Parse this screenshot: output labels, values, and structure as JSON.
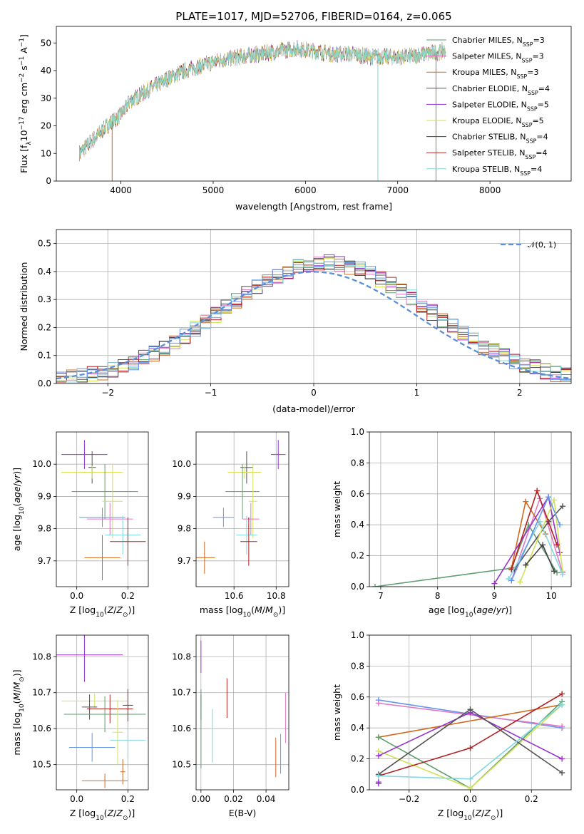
{
  "figure_title": "PLATE=1017, MJD=52706, FIBERID=0164, z=0.065",
  "colors": [
    "#5f9e6e",
    "#e377c2",
    "#d2691e",
    "#555555",
    "#9932cc",
    "#d4e157",
    "#444444",
    "#b22222",
    "#80d8e0",
    "#6495ed"
  ],
  "chart_data": [
    {
      "id": "spectrum",
      "type": "line",
      "xlabel": "wavelength [Angstrom, rest frame]",
      "ylabel": "Flux [f_λ10^-17 erg cm^-2 s^-1 A^-1]",
      "xlim": [
        3300,
        8880
      ],
      "ylim": [
        0,
        56
      ],
      "xticks": [
        4000,
        5000,
        6000,
        7000,
        8000
      ],
      "yticks": [
        0,
        10,
        20,
        30,
        40,
        50
      ],
      "grid": false,
      "legend_position": "top-right",
      "continuum": {
        "x": [
          3550,
          3700,
          3850,
          4000,
          4100,
          4300,
          4500,
          4700,
          4900,
          5100,
          5300,
          5500,
          5700,
          5900,
          6100,
          6300,
          6500,
          6700,
          6900,
          7100,
          7300,
          7500
        ],
        "y": [
          10,
          15,
          20,
          24,
          29,
          33,
          37,
          40,
          42,
          44,
          45,
          46,
          47,
          48,
          47,
          46,
          46,
          45,
          45,
          45,
          46,
          47
        ]
      },
      "dips": [
        {
          "x": 3905,
          "y": 0
        },
        {
          "x": 6785,
          "y": 0
        },
        {
          "x": 7415,
          "y": 0
        }
      ],
      "series": [
        {
          "name": "Chabrier MILES, N",
          "sub": "SSP",
          "suffix": "=3"
        },
        {
          "name": "Salpeter MILES, N",
          "sub": "SSP",
          "suffix": "=3"
        },
        {
          "name": "Kroupa MILES, N",
          "sub": "SSP",
          "suffix": "=3"
        },
        {
          "name": "Chabrier ELODIE, N",
          "sub": "SSP",
          "suffix": "=4"
        },
        {
          "name": "Salpeter ELODIE, N",
          "sub": "SSP",
          "suffix": "=5"
        },
        {
          "name": "Kroupa ELODIE, N",
          "sub": "SSP",
          "suffix": "=5"
        },
        {
          "name": "Chabrier STELIB, N",
          "sub": "SSP",
          "suffix": "=4"
        },
        {
          "name": "Salpeter STELIB, N",
          "sub": "SSP",
          "suffix": "=4"
        },
        {
          "name": "Kroupa STELIB, N",
          "sub": "SSP",
          "suffix": "=4"
        }
      ]
    },
    {
      "id": "residuals",
      "type": "bar",
      "xlabel": "(data-model)/error",
      "ylabel": "Normed distribution",
      "xlim": [
        -2.5,
        2.5
      ],
      "ylim": [
        0,
        0.55
      ],
      "xticks": [
        -2,
        -1,
        0,
        1,
        2
      ],
      "xtick_labels": [
        "−2",
        "−1",
        "0",
        "1",
        "2"
      ],
      "yticks": [
        0.0,
        0.1,
        0.2,
        0.3,
        0.4,
        0.5
      ],
      "ytick_labels": [
        "0.0",
        "0.1",
        "0.2",
        "0.3",
        "0.4",
        "0.5"
      ],
      "grid": true,
      "legend_position": "top-right",
      "legend_label": "𝒩(0, 1)",
      "bin_start": -2.5,
      "bin_width": 0.1
    },
    {
      "id": "z-age",
      "type": "scatter",
      "xlabel": "Z [log10(Z/Z⊙)]",
      "ylabel": "age [log10(age/yr)]",
      "xlim": [
        -0.08,
        0.28
      ],
      "ylim": [
        9.62,
        10.1
      ],
      "xticks": [
        0.0,
        0.2
      ],
      "xtick_labels": [
        "0.0",
        "0.2"
      ],
      "yticks": [
        9.7,
        9.8,
        9.9,
        10.0
      ],
      "ytick_labels": [
        "9.7",
        "9.8",
        "9.9",
        "10.0"
      ],
      "grid": true,
      "points": [
        {
          "x": 0.03,
          "xerr": 0.09,
          "y": 10.03,
          "yerr": 0.045,
          "c": 4
        },
        {
          "x": 0.06,
          "xerr": 0.015,
          "y": 9.99,
          "yerr": 0.05,
          "c": 3
        },
        {
          "x": 0.06,
          "xerr": 0.12,
          "y": 9.975,
          "yerr": 0.02,
          "c": 5
        },
        {
          "x": 0.11,
          "xerr": 0.13,
          "y": 9.915,
          "yerr": 0.085,
          "c": 0
        },
        {
          "x": 0.14,
          "xerr": 0.04,
          "y": 9.885,
          "yerr": 0.115,
          "c": 5
        },
        {
          "x": 0.1,
          "xerr": 0.09,
          "y": 9.835,
          "yerr": 0.03,
          "c": 9
        },
        {
          "x": 0.13,
          "xerr": 0.09,
          "y": 9.83,
          "yerr": 0.05,
          "c": 1
        },
        {
          "x": 0.18,
          "xerr": 0.07,
          "y": 9.78,
          "yerr": 0.06,
          "c": 8
        },
        {
          "x": 0.2,
          "xerr": 0.07,
          "y": 9.76,
          "yerr": 0.075,
          "c": 7
        },
        {
          "x": 0.1,
          "xerr": 0.07,
          "y": 9.71,
          "yerr": 0.07,
          "c": 2
        }
      ]
    },
    {
      "id": "mass-age",
      "type": "scatter",
      "xlabel": "mass [log10(M/M⊙)]",
      "ylabel": "",
      "xlim": [
        10.42,
        10.86
      ],
      "ylim": [
        9.62,
        10.1
      ],
      "xticks": [
        10.6,
        10.8
      ],
      "xtick_labels": [
        "10.6",
        "10.8"
      ],
      "yticks": [
        9.7,
        9.8,
        9.9,
        10.0
      ],
      "ytick_labels": [
        "9.7",
        "9.8",
        "9.9",
        "10.0"
      ],
      "grid": true,
      "points": [
        {
          "x": 10.81,
          "xerr": 0.035,
          "y": 10.03,
          "yerr": 0.045,
          "c": 4
        },
        {
          "x": 10.66,
          "xerr": 0.03,
          "y": 9.99,
          "yerr": 0.05,
          "c": 3
        },
        {
          "x": 10.65,
          "xerr": 0.08,
          "y": 9.975,
          "yerr": 0.02,
          "c": 5
        },
        {
          "x": 10.64,
          "xerr": 0.08,
          "y": 9.915,
          "yerr": 0.085,
          "c": 0
        },
        {
          "x": 10.69,
          "xerr": 0.02,
          "y": 9.885,
          "yerr": 0.115,
          "c": 5
        },
        {
          "x": 10.55,
          "xerr": 0.05,
          "y": 9.835,
          "yerr": 0.03,
          "c": 9
        },
        {
          "x": 10.68,
          "xerr": 0.04,
          "y": 9.83,
          "yerr": 0.05,
          "c": 1
        },
        {
          "x": 10.66,
          "xerr": 0.05,
          "y": 9.78,
          "yerr": 0.06,
          "c": 8
        },
        {
          "x": 10.67,
          "xerr": 0.04,
          "y": 9.76,
          "yerr": 0.075,
          "c": 7
        },
        {
          "x": 10.46,
          "xerr": 0.05,
          "y": 9.71,
          "yerr": 0.05,
          "c": 2
        }
      ]
    },
    {
      "id": "age-weight",
      "type": "line",
      "xlabel": "age [log10(age/yr)]",
      "ylabel": "mass weight",
      "xlim": [
        6.8,
        10.35
      ],
      "ylim": [
        0,
        1.0
      ],
      "xticks": [
        7,
        8,
        9,
        10
      ],
      "xtick_labels": [
        "7",
        "8",
        "9",
        "10"
      ],
      "yticks": [
        0,
        0.2,
        0.4,
        0.6,
        0.8,
        1.0
      ],
      "ytick_labels": [
        "0.0",
        "0.2",
        "0.4",
        "0.6",
        "0.8",
        "1.0"
      ],
      "grid": true,
      "lines": [
        {
          "c": 0,
          "pts": [
            [
              6.9,
              0.0
            ],
            [
              9.3,
              0.12
            ],
            [
              9.6,
              0.4
            ],
            [
              10.1,
              0.09
            ]
          ]
        },
        {
          "c": 1,
          "pts": [
            [
              9.3,
              0.04
            ],
            [
              9.8,
              0.57
            ],
            [
              10.2,
              0.09
            ]
          ]
        },
        {
          "c": 2,
          "pts": [
            [
              9.3,
              0.12
            ],
            [
              9.55,
              0.55
            ],
            [
              9.9,
              0.34
            ]
          ]
        },
        {
          "c": 3,
          "pts": [
            [
              9.35,
              0.11
            ],
            [
              9.95,
              0.42
            ],
            [
              10.2,
              0.52
            ]
          ]
        },
        {
          "c": 4,
          "pts": [
            [
              9.0,
              0.02
            ],
            [
              9.95,
              0.58
            ],
            [
              10.15,
              0.22
            ]
          ]
        },
        {
          "c": 5,
          "pts": [
            [
              9.45,
              0.03
            ],
            [
              10.05,
              0.56
            ],
            [
              10.2,
              0.1
            ]
          ]
        },
        {
          "c": 6,
          "pts": [
            [
              9.55,
              0.14
            ],
            [
              9.85,
              0.27
            ],
            [
              10.05,
              0.1
            ]
          ]
        },
        {
          "c": 7,
          "pts": [
            [
              9.3,
              0.11
            ],
            [
              9.75,
              0.62
            ],
            [
              10.1,
              0.27
            ]
          ]
        },
        {
          "c": 8,
          "pts": [
            [
              9.25,
              0.05
            ],
            [
              9.8,
              0.42
            ],
            [
              10.2,
              0.08
            ]
          ]
        },
        {
          "c": 9,
          "pts": [
            [
              9.3,
              0.04
            ],
            [
              9.95,
              0.58
            ],
            [
              10.15,
              0.4
            ]
          ]
        }
      ]
    },
    {
      "id": "z-mass",
      "type": "scatter",
      "xlabel": "Z [log10(Z/Z⊙)]",
      "ylabel": "mass [log10(M/M⊙)]",
      "xlim": [
        -0.08,
        0.28
      ],
      "ylim": [
        10.43,
        10.86
      ],
      "xticks": [
        0.0,
        0.2
      ],
      "xtick_labels": [
        "0.0",
        "0.2"
      ],
      "yticks": [
        10.5,
        10.6,
        10.7,
        10.8
      ],
      "ytick_labels": [
        "10.5",
        "10.6",
        "10.7",
        "10.8"
      ],
      "grid": true,
      "points": [
        {
          "x": 0.03,
          "xerr": 0.15,
          "y": 10.805,
          "yerr": 0.075,
          "c": 4
        },
        {
          "x": 0.07,
          "xerr": 0.13,
          "y": 10.677,
          "yerr": 0.02,
          "c": 5
        },
        {
          "x": 0.05,
          "xerr": 0.03,
          "y": 10.66,
          "yerr": 0.035,
          "c": 3
        },
        {
          "x": 0.11,
          "xerr": 0.16,
          "y": 10.64,
          "yerr": 0.05,
          "c": 0
        },
        {
          "x": 0.13,
          "xerr": 0.09,
          "y": 10.655,
          "yerr": 0.04,
          "c": 7
        },
        {
          "x": 0.2,
          "xerr": 0.02,
          "y": 10.665,
          "yerr": 0.045,
          "c": 7
        },
        {
          "x": 0.16,
          "xerr": 0.02,
          "y": 10.59,
          "yerr": 0.09,
          "c": 5
        },
        {
          "x": 0.06,
          "xerr": 0.09,
          "y": 10.548,
          "yerr": 0.04,
          "c": 9
        },
        {
          "x": 0.2,
          "xerr": 0.07,
          "y": 10.568,
          "yerr": 0.05,
          "c": 8
        },
        {
          "x": 0.11,
          "xerr": 0.09,
          "y": 10.455,
          "yerr": 0.02,
          "c": 2
        },
        {
          "x": 0.18,
          "xerr": 0.01,
          "y": 10.48,
          "yerr": 0.035,
          "c": 2
        }
      ]
    },
    {
      "id": "ebv-mass",
      "type": "scatter",
      "xlabel": "E(B-V)",
      "ylabel": "",
      "xlim": [
        -0.003,
        0.054
      ],
      "ylim": [
        10.43,
        10.86
      ],
      "xticks": [
        0.0,
        0.02,
        0.04
      ],
      "xtick_labels": [
        "0.00",
        "0.02",
        "0.04"
      ],
      "yticks": [
        10.5,
        10.6,
        10.7,
        10.8
      ],
      "ytick_labels": [
        "10.5",
        "10.6",
        "10.7",
        "10.8"
      ],
      "grid": true,
      "points": [
        {
          "x": 0.0,
          "y": 10.8,
          "yerr": 0.045,
          "c": 4
        },
        {
          "x": 0.0,
          "y": 10.66,
          "yerr": 0.035,
          "c": 3
        },
        {
          "x": 0.0,
          "y": 10.6,
          "yerr": 0.11,
          "c": 0
        },
        {
          "x": 0.007,
          "y": 10.58,
          "yerr": 0.075,
          "c": 8
        },
        {
          "x": 0.016,
          "y": 10.685,
          "yerr": 0.055,
          "c": 7
        },
        {
          "x": 0.046,
          "y": 10.52,
          "yerr": 0.055,
          "c": 2
        },
        {
          "x": 0.049,
          "y": 10.53,
          "yerr": 0.055,
          "c": 9
        },
        {
          "x": 0.052,
          "y": 10.63,
          "yerr": 0.07,
          "c": 1
        }
      ]
    },
    {
      "id": "z-weight",
      "type": "line",
      "xlabel": "Z [log10(Z/Z⊙)]",
      "ylabel": "mass weight",
      "xlim": [
        -0.33,
        0.33
      ],
      "ylim": [
        0,
        1.0
      ],
      "xticks": [
        -0.2,
        0.0,
        0.2
      ],
      "xtick_labels": [
        "−0.2",
        "0.0",
        "0.2"
      ],
      "yticks": [
        0,
        0.2,
        0.4,
        0.6,
        0.8,
        1.0
      ],
      "ytick_labels": [
        "0.0",
        "0.2",
        "0.4",
        "0.6",
        "0.8",
        "1.0"
      ],
      "grid": true,
      "lines": [
        {
          "c": 9,
          "pts": [
            [
              -0.3,
              0.58
            ],
            [
              0.3,
              0.4
            ]
          ]
        },
        {
          "c": 1,
          "pts": [
            [
              -0.3,
              0.56
            ],
            [
              0.3,
              0.41
            ]
          ]
        },
        {
          "c": 2,
          "pts": [
            [
              -0.3,
              0.34
            ],
            [
              0.3,
              0.55
            ]
          ]
        },
        {
          "c": 0,
          "pts": [
            [
              -0.3,
              0.34
            ],
            [
              0.0,
              0.01
            ],
            [
              0.3,
              0.57
            ]
          ]
        },
        {
          "c": 5,
          "pts": [
            [
              -0.3,
              0.25
            ],
            [
              0.0,
              0.01
            ],
            [
              0.3,
              0.55
            ]
          ]
        },
        {
          "c": 4,
          "pts": [
            [
              -0.3,
              0.22
            ],
            [
              0.0,
              0.5
            ],
            [
              0.3,
              0.2
            ]
          ]
        },
        {
          "c": 3,
          "pts": [
            [
              -0.3,
              0.1
            ],
            [
              0.0,
              0.52
            ],
            [
              0.3,
              0.11
            ]
          ]
        },
        {
          "c": 7,
          "pts": [
            [
              -0.3,
              0.09
            ],
            [
              0.0,
              0.27
            ],
            [
              0.3,
              0.62
            ]
          ]
        },
        {
          "c": 8,
          "pts": [
            [
              -0.3,
              0.09
            ],
            [
              0.0,
              0.07
            ],
            [
              0.3,
              0.55
            ]
          ]
        },
        {
          "c": 4,
          "pts": [
            [
              -0.3,
              0.05
            ],
            [
              -0.3,
              0.04
            ]
          ]
        }
      ]
    }
  ]
}
